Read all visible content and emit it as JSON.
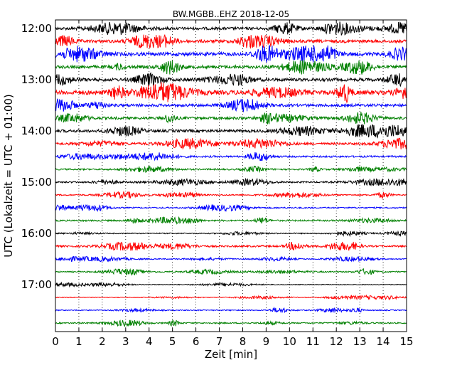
{
  "chart_data": {
    "type": "line",
    "title": "BW.MGBB..EHZ 2018-12-05",
    "xlabel": "Zeit  [min]",
    "ylabel": "UTC (Lokalzeit = UTC + 01:00)",
    "xlim": [
      0,
      15
    ],
    "x_ticks": [
      "0",
      "1",
      "2",
      "3",
      "4",
      "5",
      "6",
      "7",
      "8",
      "9",
      "10",
      "11",
      "12",
      "13",
      "14",
      "15"
    ],
    "y_ticks": [
      "12:00",
      "13:00",
      "14:00",
      "15:00",
      "16:00",
      "17:00"
    ],
    "grid": "vertical dotted",
    "colors": [
      "#000000",
      "#ff0000",
      "#0000ff",
      "#008000"
    ],
    "series": [
      {
        "start": "12:00",
        "color": "#000000",
        "amp": 0.55
      },
      {
        "start": "12:15",
        "color": "#ff0000",
        "amp": 0.6
      },
      {
        "start": "12:30",
        "color": "#0000ff",
        "amp": 0.7
      },
      {
        "start": "12:45",
        "color": "#008000",
        "amp": 0.6
      },
      {
        "start": "13:00",
        "color": "#000000",
        "amp": 0.6
      },
      {
        "start": "13:15",
        "color": "#ff0000",
        "amp": 0.85
      },
      {
        "start": "13:30",
        "color": "#0000ff",
        "amp": 0.55
      },
      {
        "start": "13:45",
        "color": "#008000",
        "amp": 0.5
      },
      {
        "start": "14:00",
        "color": "#000000",
        "amp": 0.55
      },
      {
        "start": "14:15",
        "color": "#ff0000",
        "amp": 0.45
      },
      {
        "start": "14:30",
        "color": "#0000ff",
        "amp": 0.35
      },
      {
        "start": "14:45",
        "color": "#008000",
        "amp": 0.3
      },
      {
        "start": "15:00",
        "color": "#000000",
        "amp": 0.3
      },
      {
        "start": "15:15",
        "color": "#ff0000",
        "amp": 0.25
      },
      {
        "start": "15:30",
        "color": "#0000ff",
        "amp": 0.25
      },
      {
        "start": "15:45",
        "color": "#008000",
        "amp": 0.3
      },
      {
        "start": "16:00",
        "color": "#000000",
        "amp": 0.2
      },
      {
        "start": "16:15",
        "color": "#ff0000",
        "amp": 0.35
      },
      {
        "start": "16:30",
        "color": "#0000ff",
        "amp": 0.2
      },
      {
        "start": "16:45",
        "color": "#008000",
        "amp": 0.25
      },
      {
        "start": "17:00",
        "color": "#000000",
        "amp": 0.15
      },
      {
        "start": "17:15",
        "color": "#ff0000",
        "amp": 0.15
      },
      {
        "start": "17:30",
        "color": "#0000ff",
        "amp": 0.2
      },
      {
        "start": "17:45",
        "color": "#008000",
        "amp": 0.25
      }
    ]
  }
}
